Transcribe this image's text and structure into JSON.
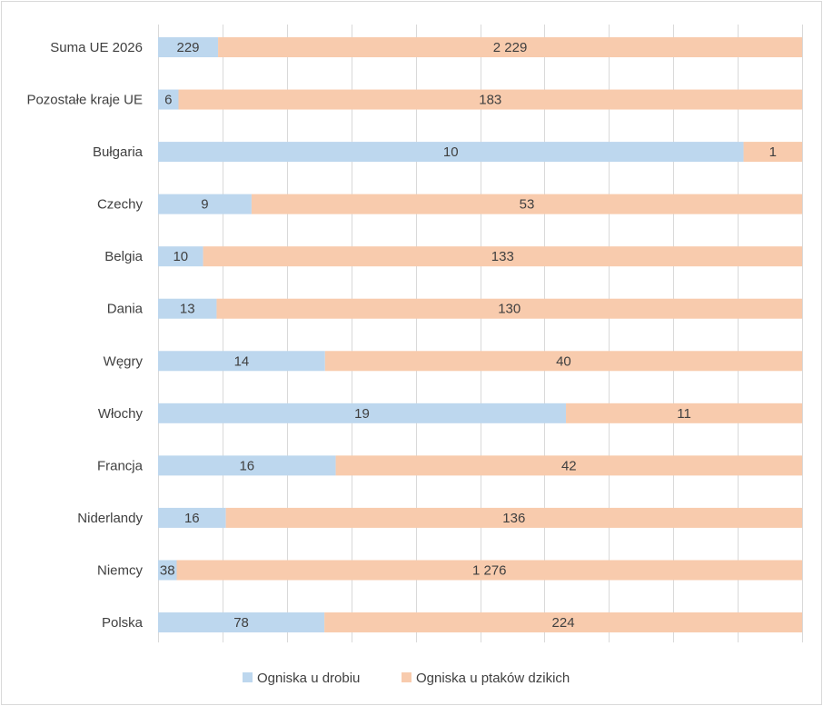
{
  "chart_data": {
    "type": "bar",
    "orientation": "horizontal",
    "stacking": "percent",
    "categories": [
      "Suma UE 2026",
      "Pozostałe kraje UE",
      "Bułgaria",
      "Czechy",
      "Belgia",
      "Dania",
      "Węgry",
      "Włochy",
      "Francja",
      "Niderlandy",
      "Niemcy",
      "Polska"
    ],
    "series": [
      {
        "name": "Ogniska u drobiu",
        "color": "#bdd7ee",
        "values": [
          229,
          6,
          10,
          9,
          10,
          13,
          14,
          19,
          16,
          16,
          38,
          78
        ],
        "labels": [
          "229",
          "6",
          "10",
          "9",
          "10",
          "13",
          "14",
          "19",
          "16",
          "16",
          "38",
          "78"
        ]
      },
      {
        "name": "Ogniska u ptaków dzikich",
        "color": "#f8cbad",
        "values": [
          2229,
          183,
          1,
          53,
          133,
          130,
          40,
          11,
          42,
          136,
          1276,
          224
        ],
        "labels": [
          "2 229",
          "183",
          "1",
          "53",
          "133",
          "130",
          "40",
          "11",
          "42",
          "136",
          "1 276",
          "224"
        ]
      }
    ],
    "xlim": [
      0,
      1
    ],
    "grid": true,
    "legend_position": "bottom"
  }
}
